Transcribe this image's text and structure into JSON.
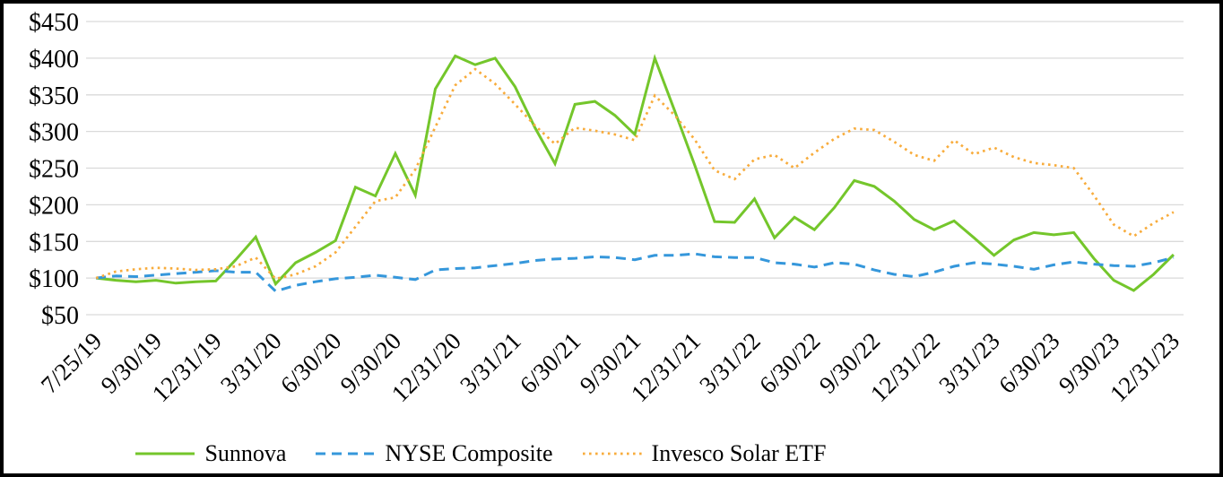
{
  "chart_data": {
    "type": "line",
    "title": "",
    "xlabel": "",
    "ylabel": "",
    "ylim": [
      50,
      450
    ],
    "y_ticks": [
      450,
      400,
      350,
      300,
      250,
      200,
      150,
      100,
      50
    ],
    "y_tick_labels": [
      "$450",
      "$400",
      "$350",
      "$300",
      "$250",
      "$200",
      "$150",
      "$100",
      "$50"
    ],
    "grid": "horizontal-only",
    "gridline_color": "#DADADA",
    "legend_position": "bottom",
    "x": [
      "7/25/19",
      "7/31/19",
      "8/31/19",
      "9/30/19",
      "10/31/19",
      "11/30/19",
      "12/31/19",
      "1/31/20",
      "2/29/20",
      "3/31/20",
      "4/30/20",
      "5/31/20",
      "6/30/20",
      "7/31/20",
      "8/31/20",
      "9/30/20",
      "10/31/20",
      "11/30/20",
      "12/31/20",
      "1/31/21",
      "2/28/21",
      "3/31/21",
      "4/30/21",
      "5/31/21",
      "6/30/21",
      "7/31/21",
      "8/31/21",
      "9/30/21",
      "10/31/21",
      "11/30/21",
      "12/31/21",
      "1/31/22",
      "2/28/22",
      "3/31/22",
      "4/30/22",
      "5/31/22",
      "6/30/22",
      "7/31/22",
      "8/31/22",
      "9/30/22",
      "10/31/22",
      "11/30/22",
      "12/31/22",
      "1/31/23",
      "2/28/23",
      "3/31/23",
      "4/30/23",
      "5/31/23",
      "6/30/23",
      "7/31/23",
      "8/31/23",
      "9/30/23",
      "10/31/23",
      "11/30/23",
      "12/31/23"
    ],
    "x_tick_indices": [
      0,
      3,
      6,
      9,
      12,
      15,
      18,
      21,
      24,
      27,
      30,
      33,
      36,
      39,
      42,
      45,
      48,
      51,
      54
    ],
    "x_tick_labels": [
      "7/25/19",
      "9/30/19",
      "12/31/19",
      "3/31/20",
      "6/30/20",
      "9/30/20",
      "12/31/20",
      "3/31/21",
      "6/30/21",
      "9/30/21",
      "12/31/21",
      "3/31/22",
      "6/30/22",
      "9/30/22",
      "12/31/22",
      "3/31/23",
      "6/30/23",
      "9/30/23",
      "12/31/23"
    ],
    "series": [
      {
        "name": "Sunnova",
        "color": "#74C62B",
        "dash": "solid",
        "values": [
          100,
          97,
          95,
          97,
          93,
          95,
          96,
          125,
          156,
          92,
          121,
          135,
          151,
          224,
          212,
          270,
          213,
          358,
          403,
          391,
          400,
          361,
          305,
          256,
          337,
          341,
          322,
          296,
          400,
          328,
          254,
          177,
          176,
          208,
          155,
          183,
          166,
          196,
          233,
          225,
          205,
          180,
          166,
          178,
          155,
          131,
          152,
          162,
          159,
          162,
          127,
          97,
          83,
          105,
          132
        ]
      },
      {
        "name": "NYSE Composite",
        "color": "#3597DB",
        "dash": "dashed",
        "values": [
          100,
          103,
          102,
          104,
          106,
          108,
          110,
          108,
          108,
          82,
          90,
          95,
          99,
          101,
          104,
          101,
          98,
          111,
          113,
          114,
          117,
          120,
          124,
          126,
          127,
          129,
          128,
          125,
          131,
          131,
          133,
          129,
          128,
          128,
          121,
          119,
          115,
          121,
          119,
          111,
          105,
          102,
          108,
          116,
          121,
          119,
          116,
          112,
          118,
          122,
          119,
          117,
          116,
          121,
          128
        ]
      },
      {
        "name": "Invesco Solar ETF",
        "color": "#F8AC3C",
        "dash": "dotted",
        "values": [
          100,
          109,
          112,
          114,
          113,
          111,
          112,
          116,
          128,
          99,
          105,
          116,
          135,
          170,
          205,
          210,
          248,
          306,
          363,
          385,
          365,
          337,
          308,
          283,
          305,
          301,
          296,
          288,
          349,
          322,
          289,
          247,
          235,
          262,
          268,
          250,
          271,
          290,
          304,
          302,
          286,
          268,
          260,
          288,
          269,
          278,
          265,
          257,
          254,
          250,
          213,
          173,
          157,
          175,
          190
        ]
      }
    ]
  }
}
